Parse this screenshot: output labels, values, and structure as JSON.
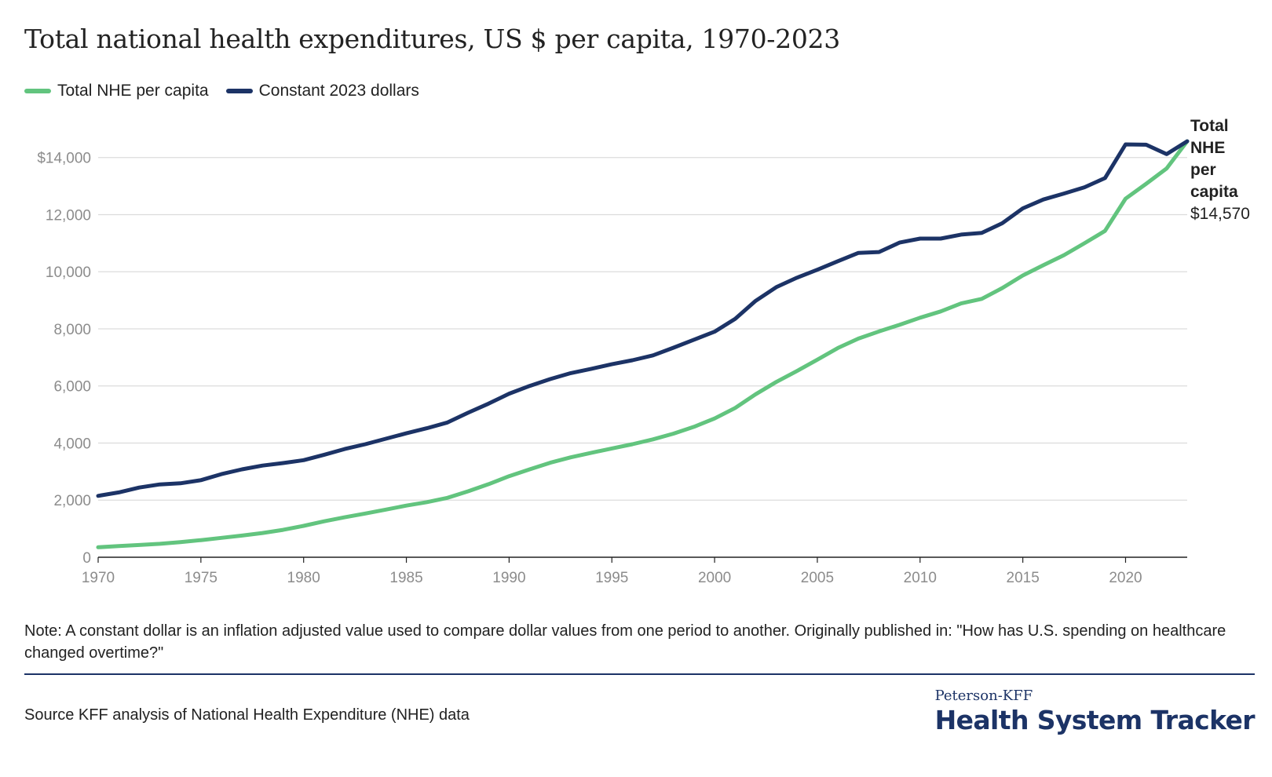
{
  "title": "Total national health expenditures, US $ per capita, 1970-2023",
  "legend": [
    {
      "label": "Total NHE per capita",
      "color": "#62c47e"
    },
    {
      "label": "Constant 2023 dollars",
      "color": "#1c3366"
    }
  ],
  "end_label": {
    "lines": [
      "Total",
      "NHE",
      "per",
      "capita"
    ],
    "value": "$14,570"
  },
  "note": "Note: A constant dollar is an inflation adjusted value used to compare dollar values from one period to another. Originally published in: \"How has U.S. spending on healthcare changed overtime?\"",
  "source": "Source KFF analysis of National Health Expenditure (NHE) data",
  "brand": {
    "top": "Peterson-KFF",
    "main": "Health System Tracker"
  },
  "chart_data": {
    "type": "line",
    "title": "Total national health expenditures, US $ per capita, 1970-2023",
    "xlabel": "",
    "ylabel": "",
    "xlim": [
      1970,
      2023
    ],
    "ylim": [
      0,
      14000
    ],
    "x_ticks": [
      "1970",
      "1975",
      "1980",
      "1985",
      "1990",
      "1995",
      "2000",
      "2005",
      "2010",
      "2015",
      "2020"
    ],
    "y_ticks": [
      "0",
      "2,000",
      "4,000",
      "6,000",
      "8,000",
      "10,000",
      "12,000",
      "$14,000"
    ],
    "grid": true,
    "legend_position": "top-left",
    "x": [
      1970,
      1971,
      1972,
      1973,
      1974,
      1975,
      1976,
      1977,
      1978,
      1979,
      1980,
      1981,
      1982,
      1983,
      1984,
      1985,
      1986,
      1987,
      1988,
      1989,
      1990,
      1991,
      1992,
      1993,
      1994,
      1995,
      1996,
      1997,
      1998,
      1999,
      2000,
      2001,
      2002,
      2003,
      2004,
      2005,
      2006,
      2007,
      2008,
      2009,
      2010,
      2011,
      2012,
      2013,
      2014,
      2015,
      2016,
      2017,
      2018,
      2019,
      2020,
      2021,
      2022,
      2023
    ],
    "series": [
      {
        "name": "Total NHE per capita",
        "color": "#62c47e",
        "values": [
          350,
          390,
          430,
          470,
          530,
          600,
          680,
          760,
          850,
          960,
          1100,
          1260,
          1400,
          1530,
          1670,
          1810,
          1930,
          2080,
          2310,
          2560,
          2840,
          3080,
          3310,
          3500,
          3660,
          3810,
          3960,
          4130,
          4330,
          4570,
          4860,
          5230,
          5710,
          6140,
          6520,
          6920,
          7330,
          7660,
          7910,
          8140,
          8390,
          8610,
          8890,
          9050,
          9430,
          9870,
          10230,
          10580,
          11000,
          11430,
          12560,
          13080,
          13620,
          14570
        ]
      },
      {
        "name": "Constant 2023 dollars",
        "color": "#1c3366",
        "values": [
          2150,
          2270,
          2440,
          2550,
          2590,
          2700,
          2910,
          3080,
          3210,
          3300,
          3400,
          3590,
          3790,
          3960,
          4150,
          4340,
          4520,
          4720,
          5060,
          5380,
          5730,
          6000,
          6240,
          6450,
          6600,
          6760,
          6900,
          7070,
          7340,
          7620,
          7900,
          8350,
          8980,
          9460,
          9790,
          10070,
          10370,
          10660,
          10690,
          11020,
          11160,
          11160,
          11300,
          11360,
          11700,
          12220,
          12530,
          12740,
          12960,
          13280,
          14460,
          14450,
          14120,
          14570
        ]
      }
    ]
  }
}
